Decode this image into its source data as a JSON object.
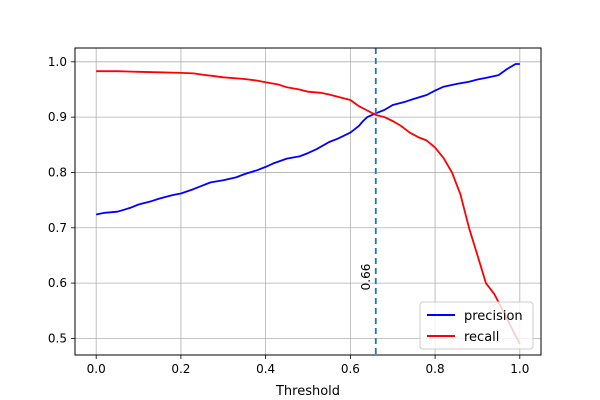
{
  "chart_data": {
    "type": "line",
    "title": "",
    "xlabel": "Threshold",
    "ylabel": "",
    "xlim": [
      -0.05,
      1.05
    ],
    "ylim": [
      0.47,
      1.025
    ],
    "grid": true,
    "legend_position": "bottom-right",
    "x_ticks": [
      0.0,
      0.2,
      0.4,
      0.6,
      0.8,
      1.0
    ],
    "x_tick_labels": [
      "0.0",
      "0.2",
      "0.4",
      "0.6",
      "0.8",
      "1.0"
    ],
    "y_ticks": [
      0.5,
      0.6,
      0.7,
      0.8,
      0.9,
      1.0
    ],
    "y_tick_labels": [
      "0.5",
      "0.6",
      "0.7",
      "0.8",
      "0.9",
      "1.0"
    ],
    "series": [
      {
        "name": "precision",
        "color": "#0000ff",
        "x": [
          0.0,
          0.02,
          0.05,
          0.08,
          0.1,
          0.13,
          0.15,
          0.18,
          0.2,
          0.23,
          0.25,
          0.27,
          0.3,
          0.33,
          0.35,
          0.38,
          0.4,
          0.42,
          0.45,
          0.48,
          0.5,
          0.52,
          0.55,
          0.57,
          0.6,
          0.62,
          0.63,
          0.64,
          0.66,
          0.68,
          0.7,
          0.73,
          0.75,
          0.78,
          0.8,
          0.82,
          0.85,
          0.88,
          0.9,
          0.92,
          0.95,
          0.97,
          0.99,
          1.0
        ],
        "y": [
          0.724,
          0.727,
          0.729,
          0.736,
          0.742,
          0.748,
          0.753,
          0.759,
          0.762,
          0.77,
          0.776,
          0.782,
          0.786,
          0.791,
          0.797,
          0.804,
          0.81,
          0.817,
          0.825,
          0.829,
          0.835,
          0.842,
          0.855,
          0.861,
          0.872,
          0.884,
          0.893,
          0.9,
          0.907,
          0.913,
          0.922,
          0.928,
          0.933,
          0.94,
          0.948,
          0.955,
          0.96,
          0.964,
          0.968,
          0.971,
          0.976,
          0.987,
          0.996,
          0.996
        ]
      },
      {
        "name": "recall",
        "color": "#ff0000",
        "x": [
          0.0,
          0.05,
          0.1,
          0.15,
          0.2,
          0.23,
          0.25,
          0.28,
          0.3,
          0.35,
          0.38,
          0.4,
          0.43,
          0.45,
          0.48,
          0.5,
          0.53,
          0.55,
          0.57,
          0.6,
          0.62,
          0.64,
          0.66,
          0.68,
          0.7,
          0.72,
          0.74,
          0.76,
          0.78,
          0.8,
          0.82,
          0.84,
          0.86,
          0.88,
          0.9,
          0.92,
          0.94,
          0.96,
          0.98,
          1.0
        ],
        "y": [
          0.983,
          0.983,
          0.982,
          0.981,
          0.98,
          0.979,
          0.977,
          0.974,
          0.972,
          0.969,
          0.966,
          0.963,
          0.959,
          0.954,
          0.95,
          0.946,
          0.944,
          0.941,
          0.937,
          0.931,
          0.92,
          0.912,
          0.904,
          0.9,
          0.893,
          0.884,
          0.872,
          0.864,
          0.858,
          0.845,
          0.826,
          0.8,
          0.76,
          0.7,
          0.65,
          0.6,
          0.58,
          0.55,
          0.52,
          0.49
        ]
      }
    ],
    "vline": {
      "x": 0.66,
      "label": "0.66",
      "color": "#1f77b4"
    }
  }
}
